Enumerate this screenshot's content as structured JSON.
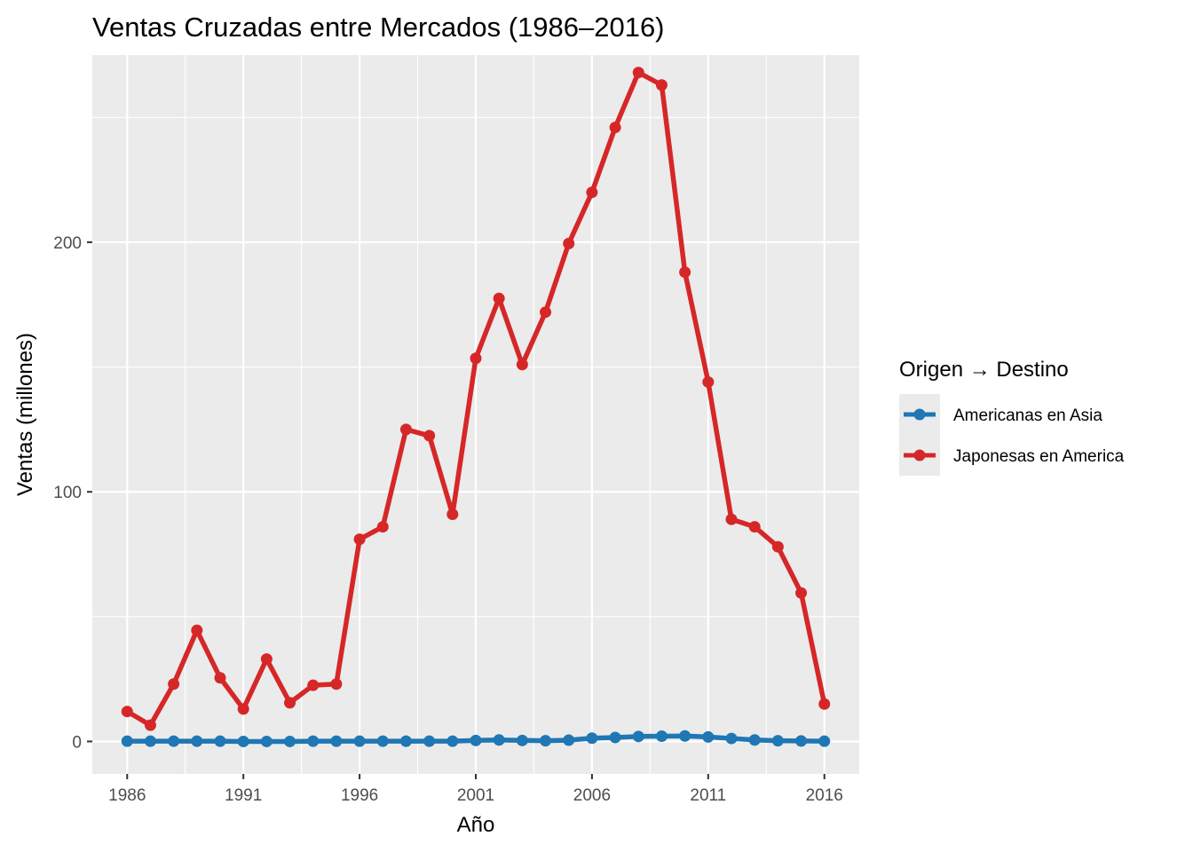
{
  "chart_data": {
    "type": "line",
    "title": "Ventas Cruzadas entre Mercados (1986–2016)",
    "xlabel": "Año",
    "ylabel": "Ventas (millones)",
    "xlim": [
      1984.5,
      2017.5
    ],
    "ylim": [
      -13,
      275
    ],
    "x_ticks": [
      1986,
      1991,
      1996,
      2001,
      2006,
      2011,
      2016
    ],
    "y_ticks": [
      0,
      100,
      200
    ],
    "grid": true,
    "legend": {
      "title": "Origen → Destino",
      "placement": "right"
    },
    "x": [
      1986,
      1987,
      1988,
      1989,
      1990,
      1991,
      1992,
      1993,
      1994,
      1995,
      1996,
      1997,
      1998,
      1999,
      2000,
      2001,
      2002,
      2003,
      2004,
      2005,
      2006,
      2007,
      2008,
      2009,
      2010,
      2011,
      2012,
      2013,
      2014,
      2015,
      2016
    ],
    "series": [
      {
        "name": "Americanas en Asia",
        "color": "#1f77b4",
        "values": [
          0.1,
          0.1,
          0.1,
          0.1,
          0.1,
          0,
          0,
          0,
          0.1,
          0.1,
          0.1,
          0.1,
          0.1,
          0.1,
          0.1,
          0.4,
          0.6,
          0.4,
          0.3,
          0.5,
          1.3,
          1.6,
          2.0,
          2.1,
          2.2,
          1.8,
          1.2,
          0.6,
          0.3,
          0.2,
          0.1
        ]
      },
      {
        "name": "Japonesas en America",
        "color": "#d62728",
        "values": [
          12,
          6.5,
          23,
          44.5,
          25.5,
          13,
          33,
          15.5,
          22.5,
          23,
          81,
          86,
          125,
          122.5,
          91,
          153.5,
          177.5,
          151,
          172,
          199.5,
          220,
          246,
          268,
          263,
          188,
          144,
          89,
          86,
          78,
          59.5,
          15
        ]
      }
    ]
  }
}
